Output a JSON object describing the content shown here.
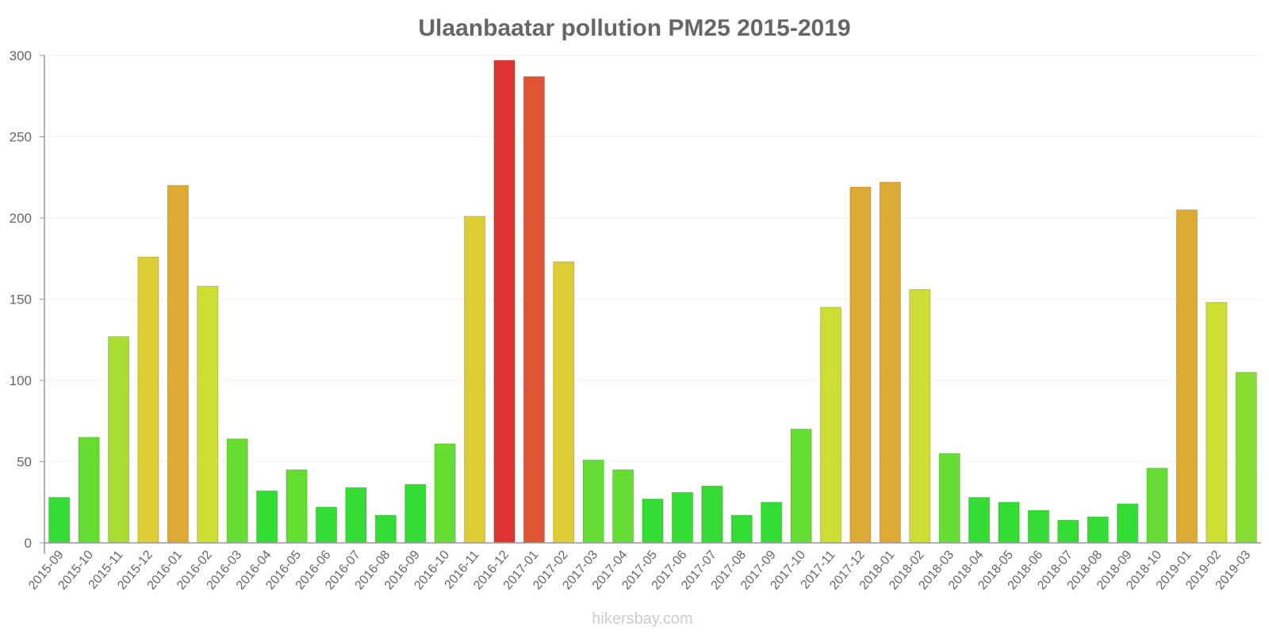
{
  "chart_data": {
    "type": "bar",
    "title": "Ulaanbaatar pollution PM25 2015-2019",
    "xlabel": "",
    "ylabel": "",
    "ylim": [
      0,
      300
    ],
    "yticks": [
      "0",
      "50",
      "100",
      "150",
      "200",
      "250",
      "300"
    ],
    "grid": true,
    "categories": [
      "2015-09",
      "2015-10",
      "2015-11",
      "2015-12",
      "2016-01",
      "2016-02",
      "2016-03",
      "2016-04",
      "2016-05",
      "2016-06",
      "2016-07",
      "2016-08",
      "2016-09",
      "2016-10",
      "2016-11",
      "2016-12",
      "2017-01",
      "2017-02",
      "2017-03",
      "2017-04",
      "2017-05",
      "2017-06",
      "2017-07",
      "2017-08",
      "2017-09",
      "2017-10",
      "2017-11",
      "2017-12",
      "2018-01",
      "2018-02",
      "2018-03",
      "2018-04",
      "2018-05",
      "2018-06",
      "2018-07",
      "2018-08",
      "2018-09",
      "2018-10",
      "2019-01",
      "2019-02",
      "2019-03"
    ],
    "values": [
      28,
      65,
      127,
      176,
      220,
      158,
      64,
      32,
      45,
      22,
      34,
      17,
      36,
      61,
      201,
      297,
      287,
      173,
      51,
      45,
      27,
      31,
      35,
      17,
      25,
      70,
      145,
      219,
      222,
      156,
      55,
      28,
      25,
      20,
      14,
      16,
      24,
      46,
      205,
      148,
      105
    ],
    "colors": [
      "#33dd33",
      "#66dd33",
      "#aadd33",
      "#ddcc33",
      "#ddaa33",
      "#ccdd33",
      "#66dd33",
      "#33dd33",
      "#66dd33",
      "#33dd33",
      "#33dd33",
      "#33dd33",
      "#33dd33",
      "#66dd33",
      "#ddcc33",
      "#dd3333",
      "#dd5533",
      "#ddcc33",
      "#66dd33",
      "#66dd33",
      "#33dd33",
      "#33dd33",
      "#33dd33",
      "#33dd33",
      "#33dd33",
      "#66dd33",
      "#ccdd33",
      "#ddaa33",
      "#ddaa33",
      "#ccdd33",
      "#66dd33",
      "#33dd33",
      "#33dd33",
      "#33dd33",
      "#33dd33",
      "#33dd33",
      "#33dd33",
      "#66dd33",
      "#ddaa33",
      "#ccdd33",
      "#88dd33"
    ]
  },
  "watermark": "hikersbay.com"
}
